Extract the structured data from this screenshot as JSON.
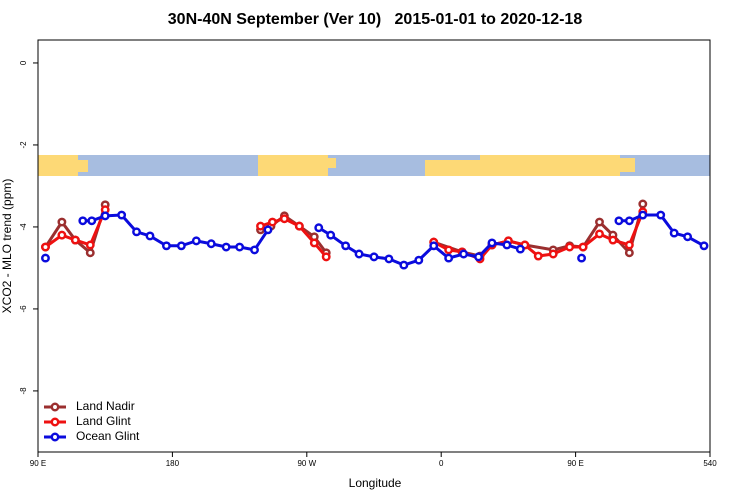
{
  "chart_data": {
    "type": "line",
    "title": "30N-40N September (Ver 10)   2015-01-01 to 2020-12-18",
    "x_label": "Longitude",
    "y_label": "XCO2 - MLO trend (ppm)",
    "xlim": [
      90,
      540
    ],
    "ylim": [
      0.56,
      -9.49
    ],
    "xticks": [
      {
        "value": 90,
        "label": "90 E"
      },
      180,
      {
        "value": 270,
        "label": "90 W"
      },
      {
        "value": 360,
        "label": "0"
      },
      {
        "value": 450,
        "label": "90 E"
      },
      540
    ],
    "yticks": [
      0,
      -2,
      -4,
      -6,
      -8
    ],
    "legend": "bottom-left",
    "series": [
      {
        "name": "Land Nadir",
        "color": "#9b2f2f",
        "x": [
          95,
          106,
          115,
          125,
          135,
          null,
          239,
          246,
          255,
          265,
          275,
          283,
          null,
          355,
          374,
          386,
          394,
          405,
          416,
          435,
          446,
          455,
          466,
          475,
          486,
          495
        ],
        "values": [
          -4.49,
          -3.88,
          -4.32,
          -4.63,
          -3.46,
          null,
          -4.07,
          -3.98,
          -3.73,
          -3.98,
          -4.24,
          -4.63,
          null,
          -4.37,
          -4.61,
          -4.71,
          -4.44,
          -4.34,
          -4.44,
          -4.56,
          -4.46,
          -4.49,
          -3.88,
          -4.2,
          -4.63,
          -3.44
        ]
      },
      {
        "name": "Land Glint",
        "color": "#ee1111",
        "x": [
          95,
          106,
          115,
          125,
          135,
          null,
          239,
          247,
          255,
          265,
          275,
          283,
          null,
          355,
          365,
          374,
          386,
          394,
          405,
          416,
          425,
          435,
          446,
          455,
          466,
          475,
          486,
          495
        ],
        "values": [
          -4.49,
          -4.2,
          -4.32,
          -4.44,
          -3.58,
          null,
          -3.98,
          -3.88,
          -3.8,
          -3.98,
          -4.39,
          -4.73,
          null,
          -4.37,
          -4.56,
          -4.61,
          -4.78,
          -4.44,
          -4.34,
          -4.44,
          -4.71,
          -4.66,
          -4.49,
          -4.49,
          -4.17,
          -4.32,
          -4.44,
          -3.63
        ]
      },
      {
        "name": "Ocean Glint",
        "color": "#0b0bdd",
        "x": [
          95,
          null,
          120,
          126,
          135,
          146,
          156,
          165,
          176,
          186,
          196,
          206,
          216,
          225,
          235,
          244,
          null,
          278,
          286,
          296,
          305,
          315,
          325,
          335,
          345,
          355,
          365,
          375,
          385,
          394,
          404,
          413,
          null,
          454,
          null,
          479,
          486,
          495,
          507,
          516,
          525,
          536
        ],
        "values": [
          -4.76,
          null,
          -3.85,
          -3.85,
          -3.73,
          -3.71,
          -4.12,
          -4.22,
          -4.46,
          -4.46,
          -4.34,
          -4.41,
          -4.49,
          -4.49,
          -4.56,
          -4.07,
          null,
          -4.02,
          -4.2,
          -4.46,
          -4.66,
          -4.73,
          -4.78,
          -4.93,
          -4.81,
          -4.46,
          -4.76,
          -4.66,
          -4.73,
          -4.39,
          -4.44,
          -4.54,
          null,
          -4.76,
          null,
          -3.85,
          -3.85,
          -3.71,
          -3.71,
          -4.15,
          -4.24,
          -4.46
        ]
      }
    ]
  }
}
